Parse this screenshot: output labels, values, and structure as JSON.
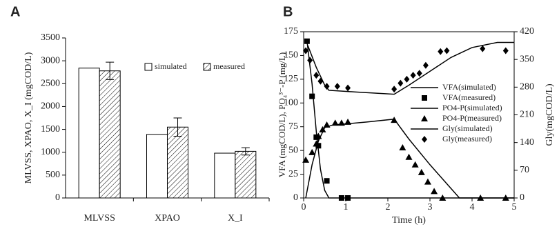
{
  "chart_data": [
    {
      "type": "bar",
      "title": "A",
      "ylabel": "MLVSS, XPAO, X_I (mgCOD/L)",
      "categories": [
        "MLVSS",
        "XPAO",
        "X_I"
      ],
      "ylim": [
        0,
        3500
      ],
      "yticks": [
        0,
        500,
        1000,
        1500,
        2000,
        2500,
        3000,
        3500
      ],
      "series": [
        {
          "name": "simulated",
          "color": "#ffffff",
          "values": [
            2840,
            1390,
            980
          ]
        },
        {
          "name": "measured",
          "color": "#ffffff",
          "hatch": "diagonal",
          "values": [
            2780,
            1550,
            1020
          ],
          "errors": [
            190,
            200,
            80
          ]
        }
      ],
      "legend": "upper right"
    },
    {
      "type": "line",
      "title": "B",
      "xlabel": "Time (h)",
      "ylabel": "VFA (mgCOD/L), PO₄³⁻-P (mg/L)",
      "y2label": "Gly(mgCOD/L)",
      "xlim": [
        0,
        5
      ],
      "xticks": [
        0,
        1,
        2,
        3,
        4,
        5
      ],
      "ylim": [
        0,
        175
      ],
      "yticks": [
        0,
        25,
        50,
        75,
        100,
        125,
        150,
        175
      ],
      "y2lim": [
        0,
        420
      ],
      "y2ticks": [
        0,
        70,
        140,
        210,
        280,
        350,
        420
      ],
      "legend": "center right",
      "series": [
        {
          "name": "VFA(simulated)",
          "color": "#000000",
          "marker": "none",
          "x": [
            0.08,
            0.2,
            0.3,
            0.4,
            0.5,
            0.6,
            5
          ],
          "values": [
            165,
            120,
            70,
            30,
            8,
            0,
            0
          ]
        },
        {
          "name": "VFA(measured)",
          "color": "#000000",
          "marker": "square",
          "x": [
            0.08,
            0.2,
            0.3,
            0.35,
            0.55,
            0.9,
            1.05
          ],
          "values": [
            165,
            107,
            64,
            55,
            18,
            0,
            0
          ]
        },
        {
          "name": "PO4-P(simulated)",
          "color": "#000000",
          "marker": "none",
          "x": [
            0.05,
            0.2,
            0.35,
            0.5,
            0.7,
            1.0,
            1.5,
            2.15,
            2.5,
            3.0,
            3.5,
            3.7,
            5
          ],
          "values": [
            0,
            35,
            60,
            74,
            77,
            78,
            80,
            83,
            62,
            35,
            10,
            0,
            0
          ]
        },
        {
          "name": "PO4-P(measured)",
          "color": "#000000",
          "marker": "triangle",
          "x": [
            0.05,
            0.2,
            0.3,
            0.35,
            0.45,
            0.55,
            0.75,
            0.9,
            1.05,
            2.15,
            2.35,
            2.5,
            2.65,
            2.8,
            2.95,
            3.1,
            3.3,
            4.2,
            4.8
          ],
          "values": [
            40,
            48,
            57,
            65,
            72,
            77,
            79,
            79,
            80,
            82,
            53,
            43,
            35,
            27,
            17,
            7,
            0,
            0,
            0
          ]
        },
        {
          "name": "Gly(simulated)",
          "color": "#000000",
          "marker": "none",
          "axis": "y2",
          "x": [
            0.1,
            0.3,
            0.5,
            0.6,
            1.2,
            2.15,
            2.5,
            3.0,
            3.5,
            4.0,
            4.6,
            5
          ],
          "values": [
            385,
            330,
            285,
            272,
            268,
            262,
            285,
            320,
            355,
            380,
            393,
            393
          ]
        },
        {
          "name": "Gly(measured)",
          "color": "#000000",
          "marker": "diamond",
          "axis": "y2",
          "x": [
            0.05,
            0.15,
            0.3,
            0.4,
            0.55,
            0.8,
            1.05,
            2.15,
            2.3,
            2.45,
            2.6,
            2.75,
            2.9,
            3.25,
            3.4,
            4.25,
            4.8
          ],
          "values": [
            372,
            348,
            310,
            295,
            282,
            282,
            278,
            275,
            290,
            300,
            310,
            315,
            335,
            370,
            372,
            377,
            372
          ]
        }
      ]
    }
  ]
}
